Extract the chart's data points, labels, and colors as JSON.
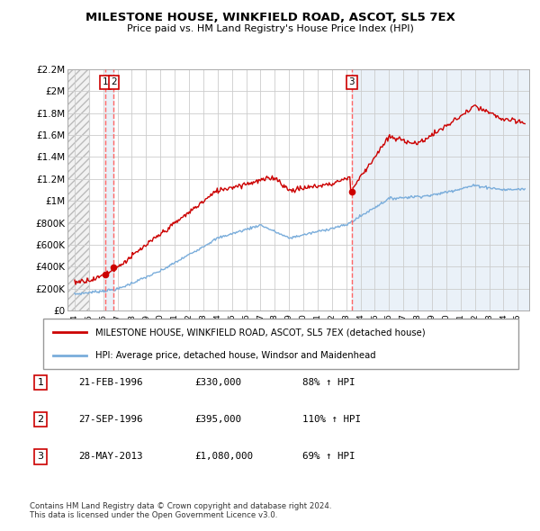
{
  "title": "MILESTONE HOUSE, WINKFIELD ROAD, ASCOT, SL5 7EX",
  "subtitle": "Price paid vs. HM Land Registry's House Price Index (HPI)",
  "legend_line1": "MILESTONE HOUSE, WINKFIELD ROAD, ASCOT, SL5 7EX (detached house)",
  "legend_line2": "HPI: Average price, detached house, Windsor and Maidenhead",
  "sales": [
    {
      "label": "1",
      "date_num": 1996.13,
      "price": 330000
    },
    {
      "label": "2",
      "date_num": 1996.74,
      "price": 395000
    },
    {
      "label": "3",
      "date_num": 2013.39,
      "price": 1080000
    }
  ],
  "sale_color": "#cc0000",
  "hpi_color": "#7aaddb",
  "vline_color": "#ff6666",
  "highlight_color": "#e8f0f8",
  "hatch_color": "#dddddd",
  "ylim": [
    0,
    2200000
  ],
  "xlim_start": 1993.5,
  "xlim_end": 2025.8,
  "yticks": [
    0,
    200000,
    400000,
    600000,
    800000,
    1000000,
    1200000,
    1400000,
    1600000,
    1800000,
    2000000,
    2200000
  ],
  "ytick_labels": [
    "£0",
    "£200K",
    "£400K",
    "£600K",
    "£800K",
    "£1M",
    "£1.2M",
    "£1.4M",
    "£1.6M",
    "£1.8M",
    "£2M",
    "£2.2M"
  ],
  "xticks": [
    1994,
    1995,
    1996,
    1997,
    1998,
    1999,
    2000,
    2001,
    2002,
    2003,
    2004,
    2005,
    2006,
    2007,
    2008,
    2009,
    2010,
    2011,
    2012,
    2013,
    2014,
    2015,
    2016,
    2017,
    2018,
    2019,
    2020,
    2021,
    2022,
    2023,
    2024,
    2025
  ],
  "footer": "Contains HM Land Registry data © Crown copyright and database right 2024.\nThis data is licensed under the Open Government Licence v3.0.",
  "table_rows": [
    [
      "1",
      "21-FEB-1996",
      "£330,000",
      "88% ↑ HPI"
    ],
    [
      "2",
      "27-SEP-1996",
      "£395,000",
      "110% ↑ HPI"
    ],
    [
      "3",
      "28-MAY-2013",
      "£1,080,000",
      "69% ↑ HPI"
    ]
  ]
}
